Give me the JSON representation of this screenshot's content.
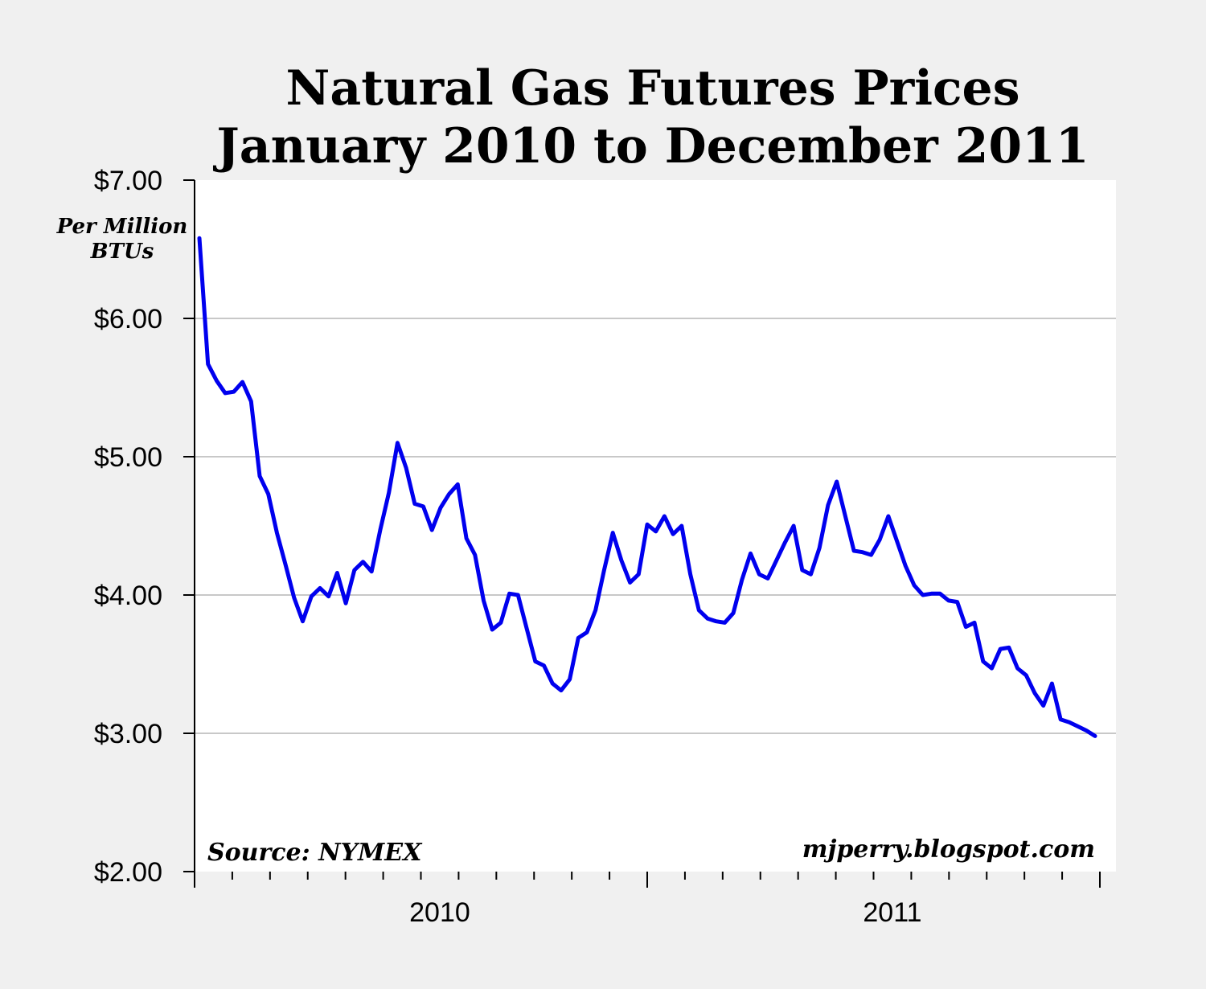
{
  "chart_data": {
    "type": "line",
    "title_line1": "Natural Gas Futures Prices",
    "title_line2": "January 2010 to December 2011",
    "ylabel_line1": "Per Million",
    "ylabel_line2": "BTUs",
    "source": "Source: NYMEX",
    "credit": "mjperry.blogspot.com",
    "ylim": [
      2,
      7
    ],
    "y_ticks": [
      "$7.00",
      "$6.00",
      "$5.00",
      "$4.00",
      "$3.00",
      "$2.00"
    ],
    "y_tick_values": [
      7,
      6,
      5,
      4,
      3,
      2
    ],
    "x_labels": [
      "2010",
      "2011"
    ],
    "grid": "horizontal",
    "line_color": "#0000ee",
    "values": [
      6.58,
      5.67,
      5.55,
      5.46,
      5.47,
      5.54,
      5.4,
      4.86,
      4.73,
      4.45,
      4.22,
      3.98,
      3.81,
      3.99,
      4.05,
      3.99,
      4.16,
      3.94,
      4.18,
      4.24,
      4.17,
      4.47,
      4.74,
      5.1,
      4.92,
      4.66,
      4.64,
      4.47,
      4.63,
      4.73,
      4.8,
      4.41,
      4.29,
      3.96,
      3.75,
      3.8,
      4.01,
      4.0,
      3.76,
      3.52,
      3.49,
      3.36,
      3.31,
      3.39,
      3.69,
      3.73,
      3.89,
      4.18,
      4.45,
      4.25,
      4.09,
      4.15,
      4.51,
      4.46,
      4.57,
      4.44,
      4.5,
      4.15,
      3.89,
      3.83,
      3.81,
      3.8,
      3.87,
      4.11,
      4.3,
      4.15,
      4.12,
      4.25,
      4.38,
      4.5,
      4.18,
      4.15,
      4.34,
      4.65,
      4.82,
      4.57,
      4.32,
      4.31,
      4.29,
      4.4,
      4.57,
      4.39,
      4.21,
      4.07,
      4.0,
      4.01,
      4.01,
      3.96,
      3.95,
      3.77,
      3.8,
      3.52,
      3.47,
      3.61,
      3.62,
      3.47,
      3.42,
      3.29,
      3.2,
      3.36,
      3.1,
      3.08,
      3.05,
      3.02,
      2.98
    ]
  }
}
